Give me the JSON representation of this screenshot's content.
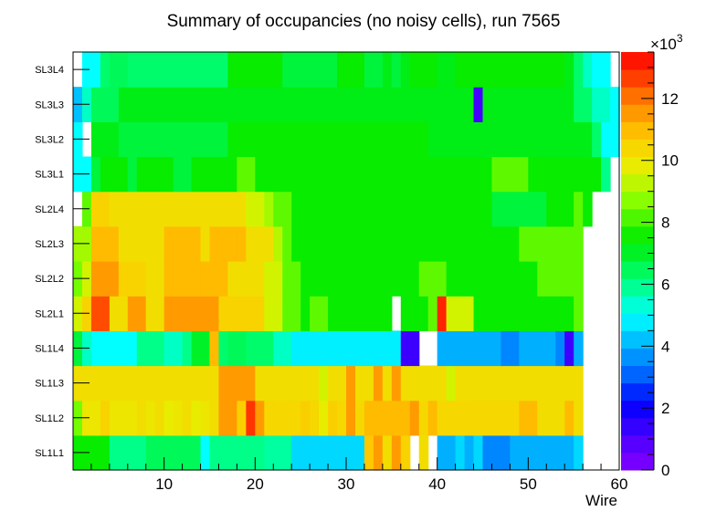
{
  "chart_data": {
    "type": "heatmap",
    "title": "Summary of occupancies (no noisy cells), run 7565",
    "xlabel": "Wire",
    "ylabel": "",
    "xlim": [
      0,
      60
    ],
    "x_ticks": [
      "10",
      "20",
      "30",
      "40",
      "50",
      "60"
    ],
    "z_range": [
      0,
      13.5
    ],
    "z_unit_label": "×10",
    "z_unit_exponent": "3",
    "z_ticks": [
      "0",
      "2",
      "4",
      "6",
      "8",
      "10",
      "12"
    ],
    "layers": [
      "SL1L1",
      "SL1L2",
      "SL1L3",
      "SL1L4",
      "SL2L1",
      "SL2L2",
      "SL2L3",
      "SL2L4",
      "SL3L1",
      "SL3L2",
      "SL3L3",
      "SL3L4"
    ],
    "values": [
      [
        7.5,
        7.5,
        7.5,
        7.5,
        6,
        6,
        6,
        6,
        6.5,
        6.5,
        6.5,
        6.5,
        6.5,
        6.5,
        5,
        6,
        6,
        6,
        6,
        6,
        6,
        5.8,
        5.8,
        5.8,
        4.5,
        4.5,
        4.5,
        4.5,
        4.5,
        4.5,
        4.5,
        4.5,
        10.8,
        11.5,
        10.2,
        11.5,
        10.5,
        0,
        10.2,
        0,
        4,
        4,
        4.5,
        4,
        4.5,
        3.5,
        3.5,
        3.5,
        4,
        4,
        4,
        4,
        4,
        4,
        4,
        4.5,
        0,
        0,
        0,
        0
      ],
      [
        8.5,
        10,
        10,
        10.5,
        10,
        10,
        10,
        10.2,
        10,
        10.2,
        9.8,
        10,
        10.2,
        9.8,
        10,
        10.2,
        11.5,
        11.5,
        10.6,
        12.8,
        11.5,
        10.4,
        10.4,
        10.4,
        10.4,
        10.6,
        10.4,
        9.8,
        10.6,
        10.4,
        11.5,
        10.4,
        11,
        11,
        11,
        11,
        11,
        11.5,
        10.4,
        11,
        10.4,
        10.4,
        10.4,
        10.4,
        10.4,
        10.4,
        10.4,
        10.4,
        10.4,
        11,
        11,
        10.2,
        10.2,
        10.2,
        11,
        10.2,
        0,
        0,
        0,
        0
      ],
      [
        10.2,
        10.2,
        10.2,
        10.2,
        10.2,
        10.2,
        10.2,
        10.2,
        10.2,
        10.2,
        10.2,
        10.2,
        10.2,
        10.2,
        10.2,
        10.2,
        11.5,
        11.5,
        11.5,
        11.5,
        10.2,
        10.2,
        10.2,
        10.2,
        10.2,
        10.2,
        10.2,
        9.5,
        10.2,
        10.2,
        11.5,
        10.2,
        10.2,
        11.5,
        10.2,
        11.5,
        10.2,
        10.2,
        10.2,
        10.2,
        10.2,
        9.5,
        10.2,
        10.2,
        10.2,
        10.2,
        10.2,
        10.2,
        10.2,
        10.2,
        10.2,
        10.2,
        10.2,
        10.2,
        10.2,
        10.2,
        0,
        0,
        0,
        0
      ],
      [
        6.8,
        5.5,
        5,
        5,
        5,
        5,
        5,
        6,
        6,
        6,
        5.5,
        5.5,
        6,
        7,
        7,
        11,
        6.3,
        6.5,
        6.5,
        6.3,
        6.3,
        6.3,
        5.5,
        5.5,
        4.8,
        4.8,
        4.8,
        4.8,
        4.8,
        4.8,
        4.8,
        4.8,
        4.8,
        4.8,
        4.8,
        4.8,
        1.3,
        1.3,
        0,
        0,
        4,
        4,
        4,
        4,
        4,
        4,
        4,
        3.5,
        3.5,
        4,
        4,
        4,
        4,
        3.5,
        1.3,
        4,
        0,
        0,
        0,
        0
      ],
      [
        9.5,
        10.5,
        12.5,
        12.5,
        10.2,
        10.2,
        11.5,
        11.5,
        10.2,
        10.2,
        11.5,
        11.5,
        11.5,
        11.5,
        11.5,
        11.5,
        10.5,
        10.5,
        10.5,
        10.5,
        10.5,
        9.5,
        9.5,
        8.3,
        8.3,
        7.5,
        8.3,
        8.3,
        7.5,
        7.5,
        7.5,
        7.5,
        7.5,
        7.5,
        7.5,
        0,
        7.5,
        7.5,
        7.5,
        8.3,
        13,
        9.5,
        9.5,
        9.5,
        7.5,
        7.5,
        7.5,
        7.5,
        7.5,
        7.5,
        7.5,
        7.5,
        7.5,
        7.5,
        7.5,
        8.3,
        0,
        0,
        0,
        0
      ],
      [
        8.5,
        9.5,
        11.5,
        11.5,
        11.5,
        10.5,
        10.5,
        10.5,
        10.2,
        10.2,
        11,
        11,
        11,
        11,
        11,
        11,
        11,
        10.2,
        10.2,
        10.2,
        10.2,
        9.5,
        9.5,
        8.3,
        8.3,
        7.5,
        7.5,
        7.5,
        7.5,
        7.5,
        7.5,
        7.5,
        7.5,
        7.5,
        7.5,
        7.5,
        7.5,
        7.5,
        8.3,
        8.3,
        8.3,
        7.5,
        7.5,
        7.5,
        7.5,
        7.5,
        7.5,
        7.5,
        7.5,
        7.5,
        7.5,
        8.3,
        8.3,
        8.3,
        8.3,
        8.3,
        0,
        0,
        0,
        0
      ],
      [
        9,
        9,
        11,
        11,
        11,
        10.2,
        10.2,
        10.2,
        10.2,
        10.2,
        11,
        11,
        11,
        11,
        10.2,
        11,
        11,
        11,
        11,
        10.2,
        10.2,
        10.2,
        9.2,
        8.3,
        7.5,
        7.5,
        7.5,
        7.5,
        7.5,
        7.5,
        7.5,
        7.5,
        7.5,
        7.5,
        7.5,
        7.5,
        7.5,
        7.5,
        7.5,
        7.5,
        7.5,
        7.5,
        7.5,
        7.5,
        7.5,
        7.5,
        7.5,
        7.5,
        7.5,
        8.3,
        8.3,
        8.3,
        8.3,
        8.3,
        8.3,
        8.3,
        0,
        0,
        0,
        0
      ],
      [
        0,
        8.3,
        10.5,
        10.5,
        10.2,
        10.2,
        10.2,
        10.2,
        10.2,
        10.2,
        10.2,
        10.2,
        10.2,
        10.2,
        10.2,
        10.2,
        10.2,
        10.2,
        10.2,
        9.5,
        9.5,
        9,
        8.3,
        8.3,
        7.5,
        7.5,
        7.5,
        7.5,
        7.5,
        7.5,
        7.5,
        7.5,
        7.5,
        7.5,
        7.5,
        7.5,
        7.5,
        7.5,
        7.5,
        7.5,
        7.5,
        7.5,
        7.5,
        7.5,
        7.5,
        7.5,
        6.8,
        6.8,
        6.8,
        6.8,
        6.8,
        6.8,
        7.5,
        7.5,
        7.5,
        8.3,
        7.5,
        0,
        0,
        0
      ],
      [
        5,
        5,
        6.8,
        7.5,
        7.5,
        7.5,
        6.8,
        7.5,
        7.5,
        7.5,
        7.5,
        6.8,
        6.8,
        7.5,
        7.5,
        7.5,
        7.5,
        7.5,
        8.3,
        8.3,
        7.5,
        7.5,
        7.5,
        7.5,
        7.5,
        7.5,
        7.5,
        7.5,
        7.5,
        7.5,
        7.5,
        7.5,
        7.5,
        7.5,
        7.5,
        7.5,
        7.5,
        7.5,
        7.5,
        7.5,
        7.5,
        7.5,
        7.5,
        7.5,
        7.5,
        7.5,
        8.3,
        8.3,
        8.3,
        8.3,
        7.5,
        7.5,
        7.5,
        7.5,
        7.5,
        7.5,
        7.5,
        7.5,
        6,
        0
      ],
      [
        5,
        0,
        7.2,
        7.2,
        7.2,
        6.8,
        6.8,
        6.8,
        6.8,
        6.8,
        6.8,
        6.8,
        6.8,
        6.8,
        6.8,
        6.8,
        6.8,
        7.5,
        7.5,
        7.5,
        7.5,
        7.5,
        7.5,
        7.5,
        7.5,
        7.5,
        7.5,
        7.5,
        7.5,
        7.5,
        7.5,
        7.5,
        7.5,
        7.5,
        7.5,
        7.5,
        7.5,
        7.5,
        7.5,
        7.2,
        7.2,
        7.2,
        7.2,
        7.2,
        7.2,
        7.2,
        7.2,
        7.2,
        7.2,
        7.2,
        7.2,
        7.2,
        7.2,
        7.2,
        7.2,
        7.2,
        7.2,
        6.3,
        5,
        5
      ],
      [
        4.2,
        5.5,
        6.5,
        6.5,
        6.5,
        7.2,
        7.2,
        7.2,
        7.2,
        7.2,
        7.2,
        7.2,
        7.2,
        7.2,
        7.2,
        7.2,
        7.2,
        7.2,
        7.2,
        7.2,
        7.2,
        7.2,
        7.2,
        7.2,
        7.2,
        7.2,
        7.2,
        7.2,
        7.2,
        7.2,
        7.2,
        7.2,
        7.2,
        7.2,
        7.2,
        7.2,
        7.2,
        7.2,
        7.2,
        7.2,
        7.2,
        7.2,
        7.2,
        7.2,
        1.2,
        7.2,
        7.2,
        7.2,
        7.2,
        7.2,
        7.2,
        7.2,
        7.2,
        7.2,
        7.2,
        6.3,
        6.3,
        5.5,
        5.5,
        5
      ],
      [
        0,
        5,
        5,
        6.3,
        6.5,
        6.5,
        6.3,
        6.3,
        6.3,
        6.3,
        6.3,
        6.3,
        6.3,
        6.3,
        6.3,
        6.3,
        6.3,
        7.5,
        7.5,
        7.5,
        7.5,
        7.5,
        7.5,
        6.8,
        6.8,
        6.8,
        6.8,
        6.8,
        6.8,
        7.5,
        7.5,
        7.5,
        6.8,
        6.8,
        7.2,
        6.8,
        7.2,
        7.5,
        7.5,
        7.5,
        7.2,
        7.2,
        7.5,
        7.5,
        7.5,
        7.5,
        7.5,
        7.5,
        7.5,
        7.5,
        7.5,
        7.5,
        7.5,
        7.5,
        7.2,
        6.3,
        5.5,
        5,
        5,
        0
      ]
    ]
  }
}
